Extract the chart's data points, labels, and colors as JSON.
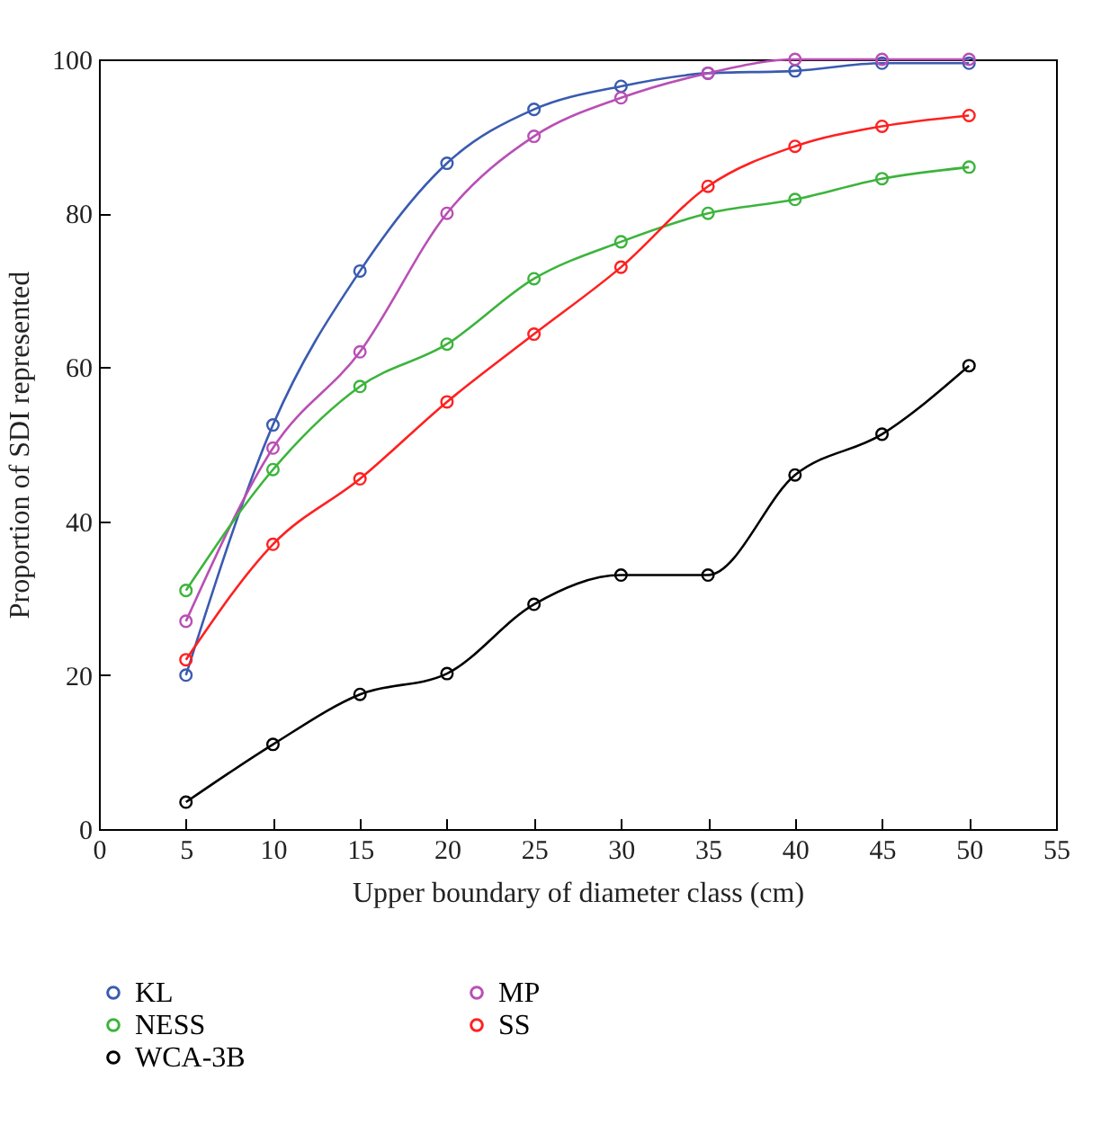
{
  "chart_data": {
    "type": "line",
    "xlabel": "Upper boundary of diameter class (cm)",
    "ylabel": "Proportion of SDI represented",
    "x": [
      5,
      10,
      15,
      20,
      25,
      30,
      35,
      40,
      45,
      50
    ],
    "series": [
      {
        "name": "KL",
        "color": "#3a5bb0",
        "values": [
          20,
          52.5,
          72.5,
          86.5,
          93.5,
          96.5,
          98.2,
          98.5,
          99.5,
          99.5
        ]
      },
      {
        "name": "MP",
        "color": "#b94fb5",
        "values": [
          27,
          49.5,
          62,
          80,
          90,
          95,
          98.2,
          100,
          100,
          100
        ]
      },
      {
        "name": "NESS",
        "color": "#3cb43c",
        "values": [
          31,
          46.7,
          57.5,
          63,
          71.5,
          76.3,
          80,
          81.8,
          84.5,
          86
        ]
      },
      {
        "name": "SS",
        "color": "#ff2020",
        "values": [
          22,
          37,
          45.5,
          55.5,
          64.3,
          73,
          83.5,
          88.7,
          91.3,
          92.7
        ]
      },
      {
        "name": "WCA-3B",
        "color": "#000000",
        "values": [
          3.5,
          11,
          17.5,
          20.2,
          29.2,
          33,
          33,
          46,
          51.3,
          60.2
        ]
      }
    ],
    "xlim": [
      0,
      55
    ],
    "xticks": [
      0,
      5,
      10,
      15,
      20,
      25,
      30,
      35,
      40,
      45,
      50,
      55
    ],
    "ylim": [
      0,
      100
    ],
    "yticks": [
      0,
      20,
      40,
      60,
      80,
      100
    ],
    "grid": false,
    "legend": "bottom",
    "marker": "circle",
    "line_style": "solid"
  }
}
